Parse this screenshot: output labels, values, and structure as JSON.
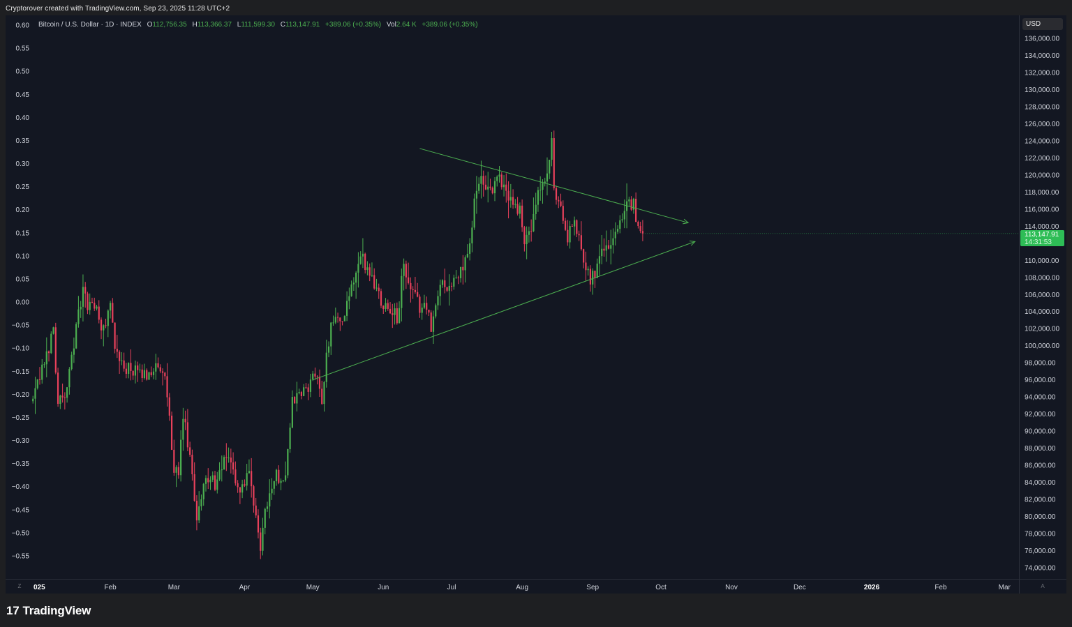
{
  "caption": "Cryptorover created with TradingView.com, Sep 23, 2025 11:28 UTC+2",
  "brand": {
    "mark": "17",
    "name": "TradingView"
  },
  "legend": {
    "symbol": "Bitcoin / U.S. Dollar · 1D · INDEX",
    "open_label": "O",
    "open": "112,756.35",
    "high_label": "H",
    "high": "113,366.37",
    "low_label": "L",
    "low": "111,599.30",
    "close_label": "C",
    "close": "113,147.91",
    "change": "+389.06 (+0.35%)",
    "vol_label": "Vol",
    "vol": "2.64 K",
    "vol_change": "+389.06 (+0.35%)"
  },
  "currency": "USD",
  "price_badge": {
    "price": "113,147.91",
    "countdown": "14:31:53"
  },
  "corner_buttons": {
    "left": "Z",
    "right": "A"
  },
  "colors": {
    "up": "#4caf50",
    "down": "#e8415b",
    "background": "#131722",
    "trendline": "#4caf50",
    "badge": "#2ebd56"
  },
  "chart_data": {
    "type": "candlestick",
    "title": "Bitcoin / U.S. Dollar · 1D · INDEX",
    "right_axis": {
      "label": "USD",
      "range": [
        73000,
        137500
      ],
      "ticks": [
        "136,000.00",
        "134,000.00",
        "132,000.00",
        "130,000.00",
        "128,000.00",
        "126,000.00",
        "124,000.00",
        "122,000.00",
        "120,000.00",
        "118,000.00",
        "116,000.00",
        "114,000.00",
        "110,000.00",
        "108,000.00",
        "106,000.00",
        "104,000.00",
        "102,000.00",
        "100,000.00",
        "98,000.00",
        "96,000.00",
        "94,000.00",
        "92,000.00",
        "90,000.00",
        "88,000.00",
        "86,000.00",
        "84,000.00",
        "82,000.00",
        "80,000.00",
        "78,000.00",
        "76,000.00",
        "74,000.00"
      ]
    },
    "left_axis": {
      "range": [
        -0.6,
        0.62
      ],
      "ticks": [
        "0.60",
        "0.55",
        "0.50",
        "0.45",
        "0.40",
        "0.35",
        "0.30",
        "0.25",
        "0.20",
        "0.15",
        "0.10",
        "0.05",
        "0.00",
        "−0.05",
        "−0.10",
        "−0.15",
        "−0.20",
        "−0.25",
        "−0.30",
        "−0.35",
        "−0.40",
        "−0.45",
        "−0.50",
        "−0.55"
      ]
    },
    "x_axis": {
      "range": [
        "2025-01-01",
        "2026-03-31"
      ],
      "ticks": [
        {
          "label": "025",
          "date": "2025-01-01",
          "bold": true
        },
        {
          "label": "Feb",
          "date": "2025-02-01"
        },
        {
          "label": "Mar",
          "date": "2025-03-01"
        },
        {
          "label": "Apr",
          "date": "2025-04-01"
        },
        {
          "label": "May",
          "date": "2025-05-01"
        },
        {
          "label": "Jun",
          "date": "2025-06-01"
        },
        {
          "label": "Jul",
          "date": "2025-07-01"
        },
        {
          "label": "Aug",
          "date": "2025-08-01"
        },
        {
          "label": "Sep",
          "date": "2025-09-01"
        },
        {
          "label": "Oct",
          "date": "2025-10-01"
        },
        {
          "label": "Nov",
          "date": "2025-11-01"
        },
        {
          "label": "Dec",
          "date": "2025-12-01"
        },
        {
          "label": "2026",
          "date": "2026-01-01",
          "bold": true
        },
        {
          "label": "Feb",
          "date": "2026-02-01"
        },
        {
          "label": "Mar",
          "date": "2026-03-01"
        }
      ]
    },
    "price_path": [
      [
        "2024-12-29",
        93500
      ],
      [
        "2025-01-03",
        98000
      ],
      [
        "2025-01-07",
        101800
      ],
      [
        "2025-01-09",
        93500
      ],
      [
        "2025-01-13",
        94500
      ],
      [
        "2025-01-15",
        99000
      ],
      [
        "2025-01-20",
        106500
      ],
      [
        "2025-01-22",
        104500
      ],
      [
        "2025-01-25",
        105000
      ],
      [
        "2025-01-28",
        101500
      ],
      [
        "2025-02-01",
        104500
      ],
      [
        "2025-02-04",
        98500
      ],
      [
        "2025-02-10",
        97000
      ],
      [
        "2025-02-16",
        96500
      ],
      [
        "2025-02-20",
        97500
      ],
      [
        "2025-02-25",
        96200
      ],
      [
        "2025-03-01",
        86000
      ],
      [
        "2025-03-03",
        84200
      ],
      [
        "2025-03-05",
        92000
      ],
      [
        "2025-03-08",
        86500
      ],
      [
        "2025-03-11",
        80000
      ],
      [
        "2025-03-14",
        84000
      ],
      [
        "2025-03-20",
        84000
      ],
      [
        "2025-03-25",
        87500
      ],
      [
        "2025-03-29",
        83000
      ],
      [
        "2025-04-03",
        84500
      ],
      [
        "2025-04-08",
        76500
      ],
      [
        "2025-04-10",
        81000
      ],
      [
        "2025-04-14",
        84500
      ],
      [
        "2025-04-19",
        85000
      ],
      [
        "2025-04-22",
        93500
      ],
      [
        "2025-04-27",
        94500
      ],
      [
        "2025-05-02",
        96500
      ],
      [
        "2025-05-05",
        94000
      ],
      [
        "2025-05-09",
        103000
      ],
      [
        "2025-05-15",
        103500
      ],
      [
        "2025-05-21",
        109500
      ],
      [
        "2025-05-23",
        110000
      ],
      [
        "2025-05-26",
        108500
      ],
      [
        "2025-06-01",
        105000
      ],
      [
        "2025-06-04",
        104500
      ],
      [
        "2025-06-07",
        103000
      ],
      [
        "2025-06-10",
        109500
      ],
      [
        "2025-06-12",
        107000
      ],
      [
        "2025-06-17",
        104500
      ],
      [
        "2025-06-20",
        105000
      ],
      [
        "2025-06-22",
        101500
      ],
      [
        "2025-06-26",
        107500
      ],
      [
        "2025-07-01",
        107000
      ],
      [
        "2025-07-04",
        108000
      ],
      [
        "2025-07-09",
        111500
      ],
      [
        "2025-07-11",
        117500
      ],
      [
        "2025-07-14",
        119500
      ],
      [
        "2025-07-16",
        117500
      ],
      [
        "2025-07-22",
        119500
      ],
      [
        "2025-07-26",
        117500
      ],
      [
        "2025-07-31",
        115800
      ],
      [
        "2025-08-02",
        112500
      ],
      [
        "2025-08-05",
        113500
      ],
      [
        "2025-08-08",
        117500
      ],
      [
        "2025-08-12",
        120000
      ],
      [
        "2025-08-14",
        123500
      ],
      [
        "2025-08-15",
        118000
      ],
      [
        "2025-08-18",
        116500
      ],
      [
        "2025-08-21",
        112500
      ],
      [
        "2025-08-24",
        114500
      ],
      [
        "2025-08-27",
        111500
      ],
      [
        "2025-08-31",
        108000
      ],
      [
        "2025-09-02",
        108500
      ],
      [
        "2025-09-05",
        112000
      ],
      [
        "2025-09-09",
        111500
      ],
      [
        "2025-09-12",
        114500
      ],
      [
        "2025-09-15",
        116000
      ],
      [
        "2025-09-19",
        116500
      ],
      [
        "2025-09-22",
        113200
      ],
      [
        "2025-09-23",
        113147.91
      ]
    ],
    "trendlines": [
      {
        "start": [
          "2025-06-17",
          123100
        ],
        "end": [
          "2025-10-13",
          114400
        ],
        "arrow": true
      },
      {
        "start": [
          "2025-05-01",
          96000
        ],
        "end": [
          "2025-10-16",
          112200
        ],
        "arrow": true
      }
    ],
    "last_price": 113147.91,
    "grid": false,
    "legend_position": "top-left"
  }
}
